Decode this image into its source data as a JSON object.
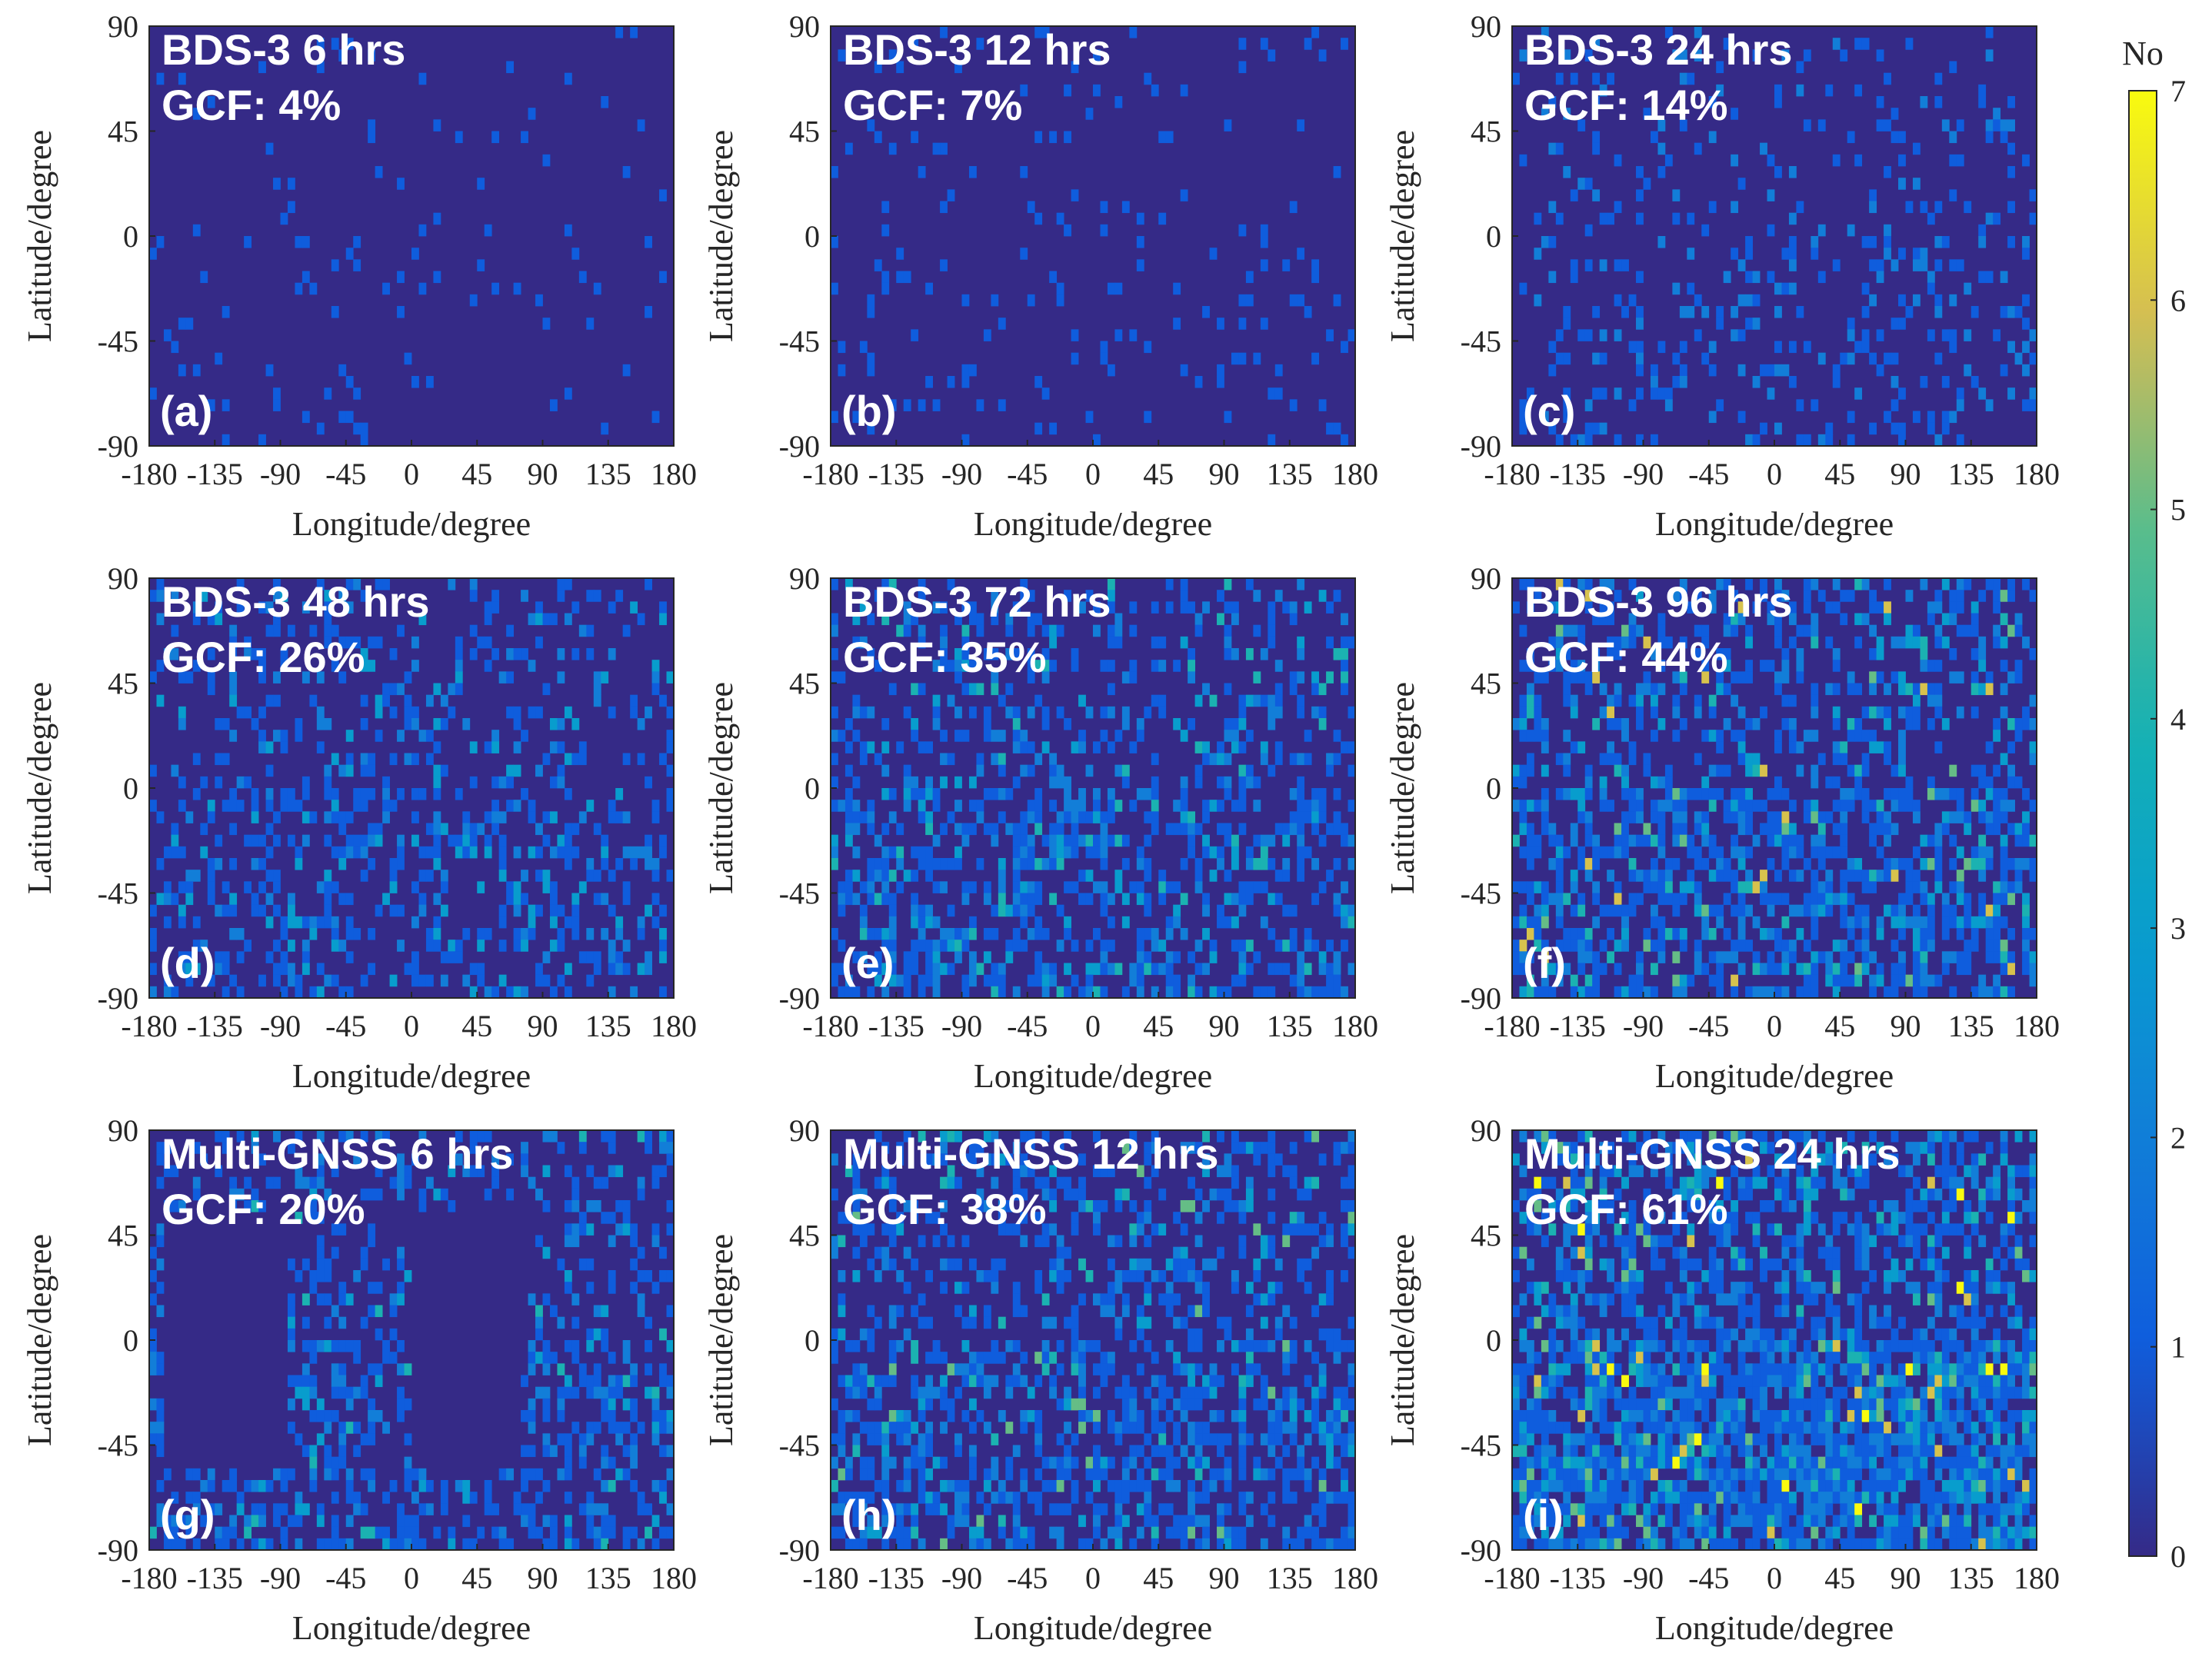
{
  "chart_data": {
    "type": "heatmap",
    "colormap": "parula",
    "colors": {
      "low": "#352a87",
      "high": "#f9fb0e",
      "frame": "#262626"
    },
    "xlim": [
      -180,
      180
    ],
    "ylim": [
      -90,
      90
    ],
    "x_ticks": [
      "-180",
      "-135",
      "-90",
      "-45",
      "0",
      "45",
      "90",
      "135",
      "180"
    ],
    "y_ticks": [
      "90",
      "45",
      "0",
      "-45",
      "-90"
    ],
    "grid_resolution_degrees": 5,
    "colorbar": {
      "title": "No",
      "range": [
        0,
        7
      ],
      "ticks": [
        "0",
        "1",
        "2",
        "3",
        "4",
        "5",
        "6",
        "7"
      ]
    },
    "panels": [
      {
        "title": "BDS-3 6 hrs",
        "gcf": "GCF: 4%",
        "label": "(a)",
        "xlabel": "Longitude/degree",
        "ylabel": "Latitude/degree",
        "coverage_fraction": 0.04,
        "max_count": 1
      },
      {
        "title": "BDS-3 12 hrs",
        "gcf": "GCF: 7%",
        "label": "(b)",
        "xlabel": "Longitude/degree",
        "ylabel": "Latitude/degree",
        "coverage_fraction": 0.07,
        "max_count": 1
      },
      {
        "title": "BDS-3 24 hrs",
        "gcf": "GCF: 14%",
        "label": "(c)",
        "xlabel": "Longitude/degree",
        "ylabel": "Latitude/degree",
        "coverage_fraction": 0.14,
        "max_count": 2
      },
      {
        "title": "BDS-3 48 hrs",
        "gcf": "GCF: 26%",
        "label": "(d)",
        "xlabel": "Longitude/degree",
        "ylabel": "Latitude/degree",
        "coverage_fraction": 0.26,
        "max_count": 3
      },
      {
        "title": "BDS-3 72 hrs",
        "gcf": "GCF: 35%",
        "label": "(e)",
        "xlabel": "Longitude/degree",
        "ylabel": "Latitude/degree",
        "coverage_fraction": 0.35,
        "max_count": 4
      },
      {
        "title": "BDS-3 96 hrs",
        "gcf": "GCF: 44%",
        "label": "(f)",
        "xlabel": "Longitude/degree",
        "ylabel": "Latitude/degree",
        "coverage_fraction": 0.44,
        "max_count": 6
      },
      {
        "title": "Multi-GNSS 6 hrs",
        "gcf": "GCF: 20%",
        "label": "(g)",
        "xlabel": "Longitude/degree",
        "ylabel": "Latitude/degree",
        "coverage_fraction": 0.2,
        "max_count": 4,
        "empty_regions_lon": [
          [
            -170,
            -85
          ],
          [
            0,
            75
          ]
        ],
        "empty_regions_lat": [
          -55,
          55
        ]
      },
      {
        "title": "Multi-GNSS 12 hrs",
        "gcf": "GCF: 38%",
        "label": "(h)",
        "xlabel": "Longitude/degree",
        "ylabel": "Latitude/degree",
        "coverage_fraction": 0.38,
        "max_count": 5
      },
      {
        "title": "Multi-GNSS 24 hrs",
        "gcf": "GCF: 61%",
        "label": "(i)",
        "xlabel": "Longitude/degree",
        "ylabel": "Latitude/degree",
        "coverage_fraction": 0.61,
        "max_count": 7
      }
    ]
  }
}
